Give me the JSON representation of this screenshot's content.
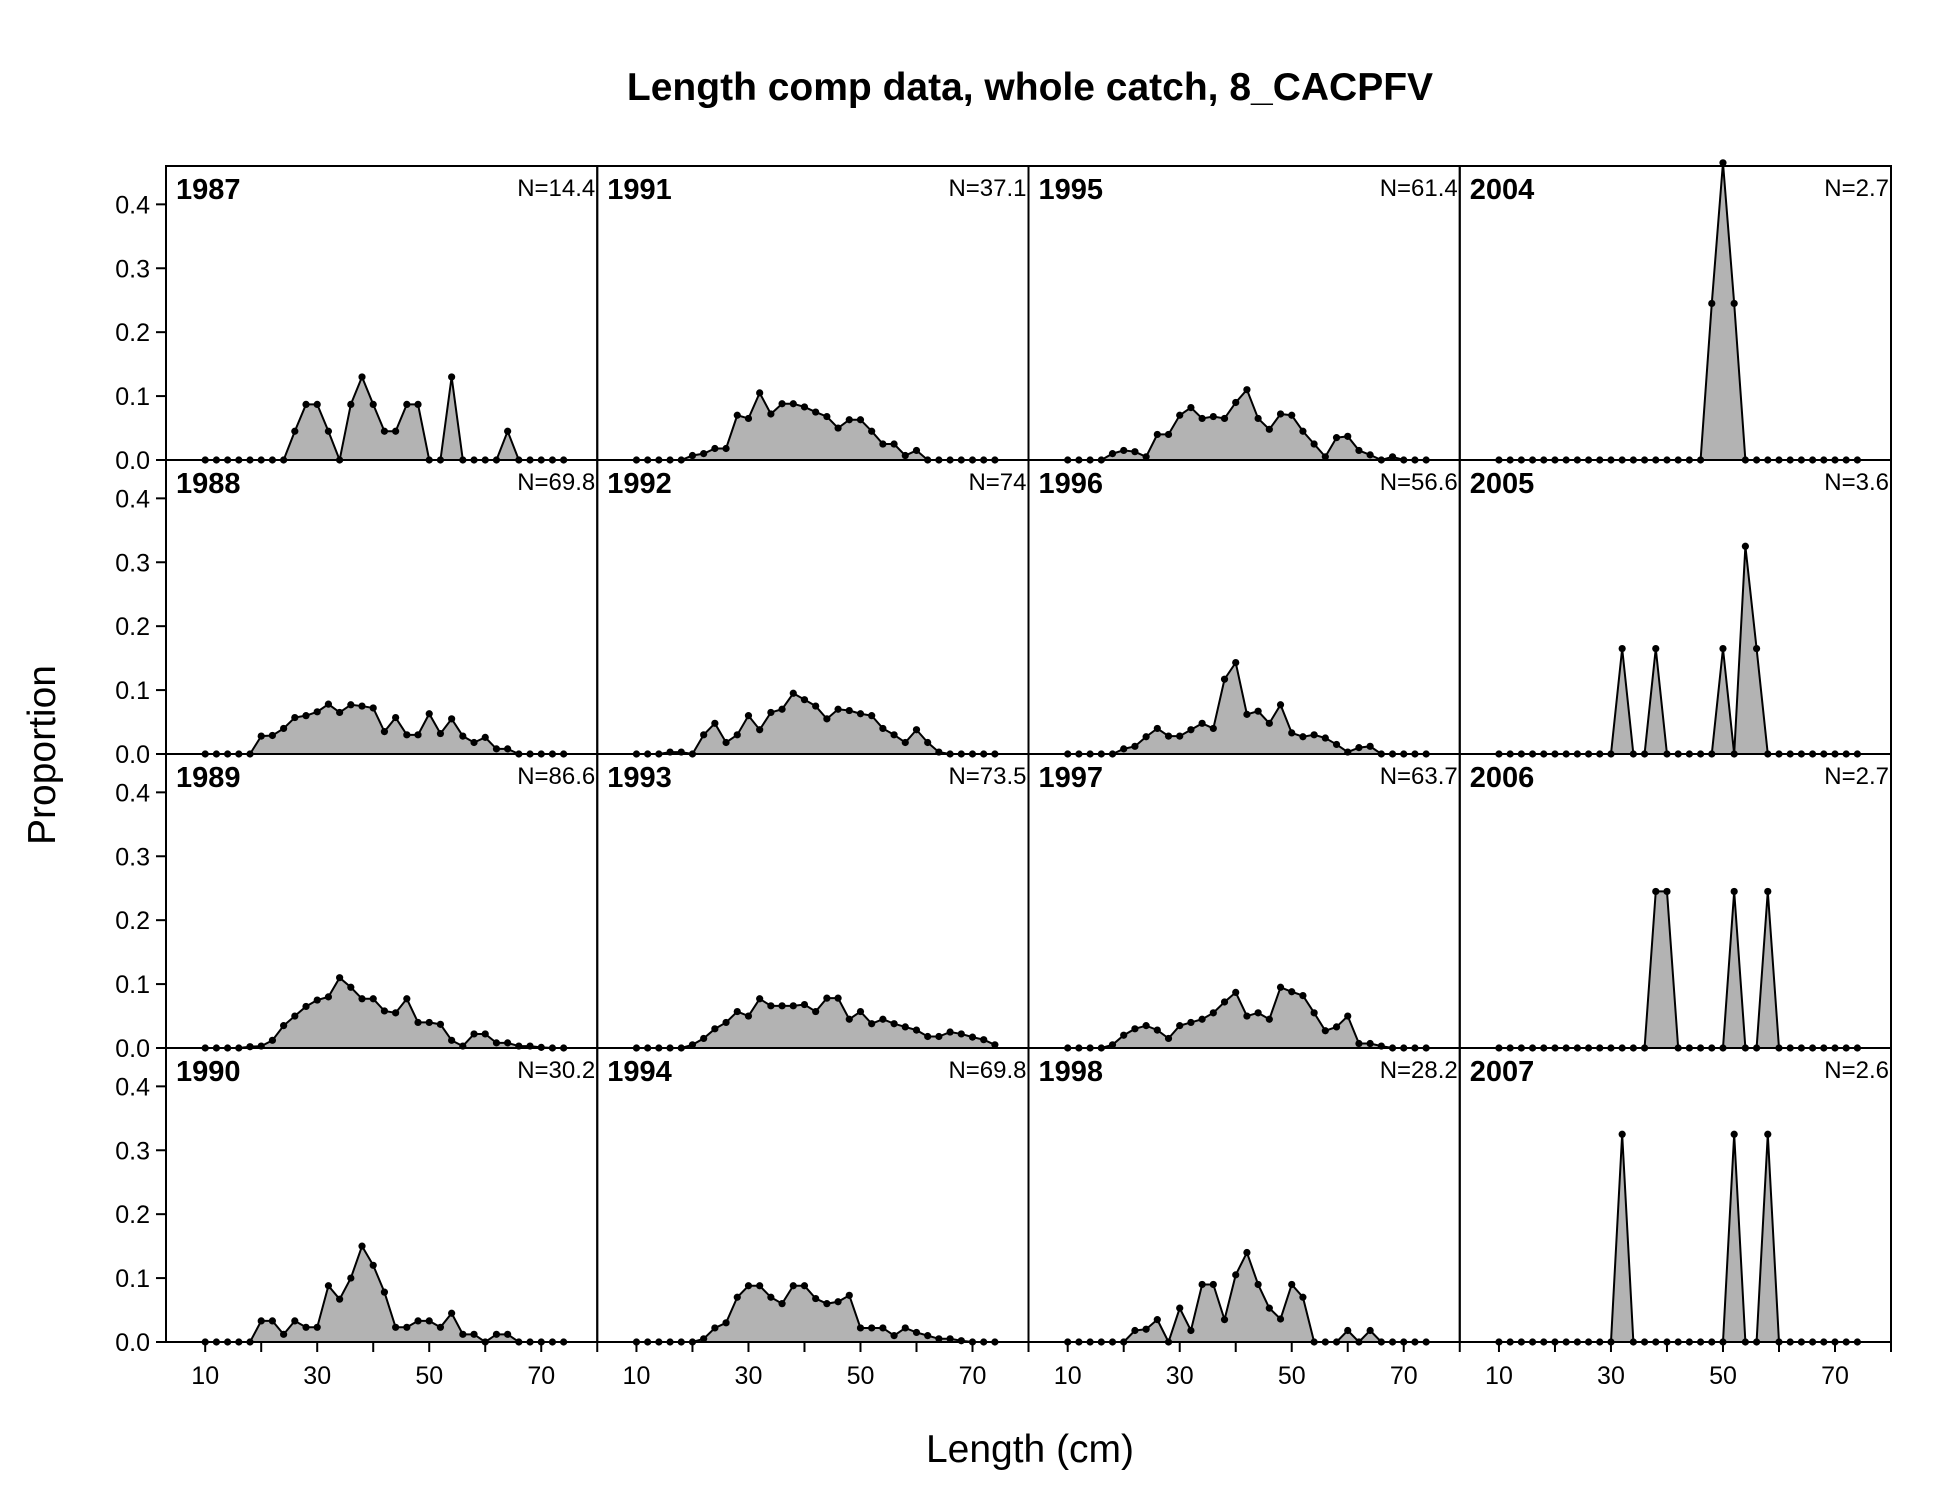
{
  "chart_data": {
    "type": "area",
    "title": "Length comp data, whole catch, 8_CACPFV",
    "xlabel": "Length (cm)",
    "ylabel": "Proportion",
    "xlim": [
      3,
      80
    ],
    "ylim": [
      0,
      0.46
    ],
    "x_ticks": [
      10,
      20,
      30,
      40,
      50,
      60,
      70,
      80
    ],
    "x_tick_labels": [
      "10",
      "30",
      "50",
      "70"
    ],
    "y_ticks": [
      "0.0",
      "0.1",
      "0.2",
      "0.3",
      "0.4"
    ],
    "y_tick_values": [
      0,
      0.1,
      0.2,
      0.3,
      0.4
    ],
    "bins": [
      10,
      12,
      14,
      16,
      18,
      20,
      22,
      24,
      26,
      28,
      30,
      32,
      34,
      36,
      38,
      40,
      42,
      44,
      46,
      48,
      50,
      52,
      54,
      56,
      58,
      60,
      62,
      64,
      66,
      68,
      70,
      72,
      74
    ],
    "layout": "4 rows x 4 columns, filled column-wise",
    "fill_color": "#b3b3b3",
    "line_color": "#000000",
    "panels": [
      {
        "year": "1987",
        "n": "N=14.4",
        "values": [
          0,
          0,
          0,
          0,
          0,
          0,
          0,
          0,
          0.045,
          0.087,
          0.087,
          0.045,
          0,
          0.087,
          0.13,
          0.087,
          0.045,
          0.045,
          0.087,
          0.087,
          0,
          0,
          0.13,
          0,
          0,
          0,
          0,
          0.045,
          0,
          0,
          0,
          0,
          0
        ]
      },
      {
        "year": "1988",
        "n": "N=69.8",
        "values": [
          0,
          0,
          0,
          0,
          0,
          0.028,
          0.029,
          0.04,
          0.057,
          0.06,
          0.066,
          0.078,
          0.065,
          0.077,
          0.075,
          0.072,
          0.035,
          0.057,
          0.03,
          0.03,
          0.063,
          0.032,
          0.055,
          0.028,
          0.018,
          0.026,
          0.008,
          0.008,
          0,
          0,
          0,
          0,
          0
        ]
      },
      {
        "year": "1989",
        "n": "N=86.6",
        "values": [
          0,
          0,
          0,
          0,
          0.002,
          0.003,
          0.012,
          0.035,
          0.05,
          0.065,
          0.075,
          0.08,
          0.11,
          0.095,
          0.077,
          0.077,
          0.058,
          0.055,
          0.077,
          0.04,
          0.04,
          0.037,
          0.012,
          0.003,
          0.022,
          0.022,
          0.008,
          0.008,
          0.003,
          0.003,
          0.001,
          0,
          0
        ]
      },
      {
        "year": "1990",
        "n": "N=30.2",
        "values": [
          0,
          0,
          0,
          0,
          0,
          0.033,
          0.033,
          0.012,
          0.033,
          0.023,
          0.023,
          0.088,
          0.067,
          0.1,
          0.15,
          0.12,
          0.078,
          0.023,
          0.023,
          0.033,
          0.033,
          0.023,
          0.045,
          0.012,
          0.012,
          0,
          0.012,
          0.012,
          0,
          0,
          0,
          0,
          0
        ]
      },
      {
        "year": "1991",
        "n": "N=37.1",
        "values": [
          0,
          0,
          0,
          0,
          0,
          0.007,
          0.01,
          0.018,
          0.018,
          0.07,
          0.065,
          0.105,
          0.072,
          0.088,
          0.088,
          0.083,
          0.075,
          0.068,
          0.05,
          0.063,
          0.063,
          0.045,
          0.025,
          0.025,
          0.007,
          0.015,
          0,
          0,
          0,
          0,
          0,
          0,
          0
        ]
      },
      {
        "year": "1992",
        "n": "N=74",
        "values": [
          0,
          0,
          0,
          0.003,
          0.003,
          0,
          0.03,
          0.048,
          0.018,
          0.03,
          0.06,
          0.038,
          0.065,
          0.07,
          0.095,
          0.085,
          0.075,
          0.055,
          0.07,
          0.068,
          0.063,
          0.06,
          0.04,
          0.03,
          0.018,
          0.038,
          0.018,
          0.003,
          0,
          0,
          0,
          0,
          0
        ]
      },
      {
        "year": "1993",
        "n": "N=73.5",
        "values": [
          0,
          0,
          0,
          0,
          0,
          0.005,
          0.015,
          0.03,
          0.04,
          0.057,
          0.05,
          0.077,
          0.066,
          0.066,
          0.066,
          0.068,
          0.057,
          0.078,
          0.078,
          0.045,
          0.057,
          0.038,
          0.045,
          0.038,
          0.033,
          0.028,
          0.018,
          0.018,
          0.025,
          0.022,
          0.017,
          0.013,
          0.005
        ]
      },
      {
        "year": "1994",
        "n": "N=69.8",
        "values": [
          0,
          0,
          0,
          0,
          0,
          0,
          0.005,
          0.022,
          0.03,
          0.07,
          0.088,
          0.088,
          0.07,
          0.06,
          0.088,
          0.088,
          0.068,
          0.06,
          0.063,
          0.073,
          0.022,
          0.022,
          0.022,
          0.01,
          0.022,
          0.015,
          0.01,
          0.005,
          0.005,
          0.002,
          0,
          0,
          0
        ]
      },
      {
        "year": "1995",
        "n": "N=61.4",
        "values": [
          0,
          0,
          0,
          0,
          0.01,
          0.015,
          0.013,
          0.005,
          0.04,
          0.04,
          0.07,
          0.082,
          0.065,
          0.068,
          0.065,
          0.09,
          0.11,
          0.065,
          0.048,
          0.072,
          0.07,
          0.045,
          0.025,
          0.005,
          0.035,
          0.037,
          0.015,
          0.008,
          0,
          0.005,
          0,
          0,
          0
        ]
      },
      {
        "year": "1996",
        "n": "N=56.6",
        "values": [
          0,
          0,
          0,
          0,
          0,
          0.008,
          0.012,
          0.027,
          0.04,
          0.028,
          0.028,
          0.038,
          0.048,
          0.04,
          0.117,
          0.143,
          0.062,
          0.067,
          0.048,
          0.077,
          0.033,
          0.027,
          0.03,
          0.025,
          0.015,
          0.003,
          0.01,
          0.012,
          0,
          0,
          0,
          0,
          0
        ]
      },
      {
        "year": "1997",
        "n": "N=63.7",
        "values": [
          0,
          0,
          0,
          0,
          0.005,
          0.02,
          0.03,
          0.035,
          0.028,
          0.015,
          0.035,
          0.04,
          0.045,
          0.055,
          0.072,
          0.087,
          0.05,
          0.055,
          0.045,
          0.095,
          0.088,
          0.082,
          0.055,
          0.027,
          0.033,
          0.05,
          0.007,
          0.007,
          0.003,
          0,
          0,
          0,
          0
        ]
      },
      {
        "year": "1998",
        "n": "N=28.2",
        "values": [
          0,
          0,
          0,
          0,
          0,
          0,
          0.018,
          0.02,
          0.035,
          0,
          0.053,
          0.018,
          0.09,
          0.09,
          0.035,
          0.105,
          0.14,
          0.09,
          0.053,
          0.036,
          0.09,
          0.07,
          0,
          0,
          0,
          0.018,
          0,
          0.018,
          0,
          0,
          0,
          0,
          0
        ]
      },
      {
        "year": "2004",
        "n": "N=2.7",
        "values": [
          0,
          0,
          0,
          0,
          0,
          0,
          0,
          0,
          0,
          0,
          0,
          0,
          0,
          0,
          0,
          0,
          0,
          0,
          0,
          0.245,
          0.465,
          0.245,
          0,
          0,
          0,
          0,
          0,
          0,
          0,
          0,
          0,
          0,
          0
        ]
      },
      {
        "year": "2005",
        "n": "N=3.6",
        "values": [
          0,
          0,
          0,
          0,
          0,
          0,
          0,
          0,
          0,
          0,
          0,
          0.165,
          0,
          0,
          0.165,
          0,
          0,
          0,
          0,
          0,
          0.165,
          0,
          0.325,
          0.165,
          0,
          0,
          0,
          0,
          0,
          0,
          0,
          0,
          0
        ]
      },
      {
        "year": "2006",
        "n": "N=2.7",
        "values": [
          0,
          0,
          0,
          0,
          0,
          0,
          0,
          0,
          0,
          0,
          0,
          0,
          0,
          0,
          0.245,
          0.245,
          0,
          0,
          0,
          0,
          0,
          0.245,
          0,
          0,
          0.245,
          0,
          0,
          0,
          0,
          0,
          0,
          0,
          0
        ]
      },
      {
        "year": "2007",
        "n": "N=2.6",
        "values": [
          0,
          0,
          0,
          0,
          0,
          0,
          0,
          0,
          0,
          0,
          0,
          0.325,
          0,
          0,
          0,
          0,
          0,
          0,
          0,
          0,
          0,
          0.325,
          0,
          0,
          0.325,
          0,
          0,
          0,
          0,
          0,
          0,
          0,
          0
        ]
      }
    ]
  }
}
